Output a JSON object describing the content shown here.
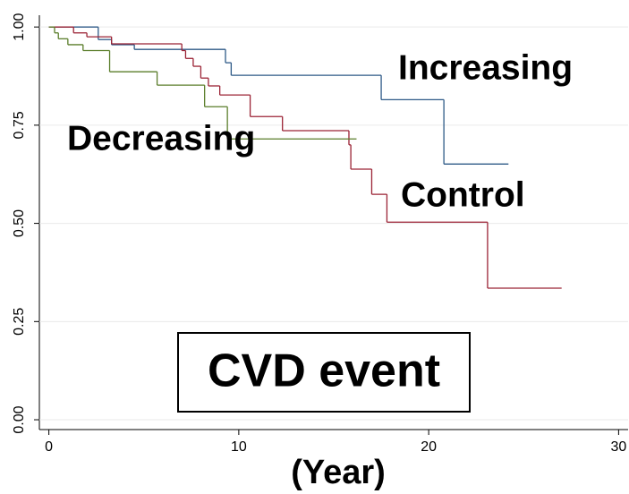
{
  "chart_data": {
    "type": "step",
    "x_label": "(Year)",
    "annotation": "CVD event",
    "xlim": [
      -0.5,
      30.5
    ],
    "xticks": [
      0,
      10,
      20,
      30
    ],
    "ylim": [
      -0.025,
      1.03
    ],
    "yticks": [
      {
        "value": 0,
        "label": "0.00"
      },
      {
        "value": 0.25,
        "label": "0.25"
      },
      {
        "value": 0.5,
        "label": "0.50"
      },
      {
        "value": 0.75,
        "label": "0.75"
      },
      {
        "value": 1,
        "label": "1.00"
      }
    ],
    "grid": true,
    "series": [
      {
        "name": "Increasing",
        "color": "#2e5a87",
        "x": [
          0,
          2.6,
          3.3,
          4.5,
          9.3,
          9.6,
          17.5,
          20.8,
          24.2
        ],
        "values": [
          1,
          0.968,
          0.955,
          0.943,
          0.909,
          0.877,
          0.815,
          0.651,
          0.651
        ]
      },
      {
        "name": "Control",
        "color": "#9b2335",
        "x": [
          0,
          1.3,
          2.0,
          3.3,
          7.0,
          7.2,
          7.6,
          8.0,
          8.4,
          9.0,
          10.6,
          12.3,
          15.8,
          15.9,
          17.0,
          17.8,
          23.1,
          27.0
        ],
        "values": [
          1,
          0.985,
          0.975,
          0.957,
          0.94,
          0.92,
          0.9,
          0.87,
          0.85,
          0.827,
          0.772,
          0.736,
          0.7,
          0.638,
          0.574,
          0.503,
          0.335,
          0.335
        ]
      },
      {
        "name": "Decreasing",
        "color": "#5a7d2a",
        "x": [
          0,
          0.3,
          0.5,
          1.0,
          1.8,
          3.2,
          5.7,
          8.2,
          9.4,
          16.2
        ],
        "values": [
          1,
          0.985,
          0.97,
          0.955,
          0.94,
          0.886,
          0.852,
          0.797,
          0.715,
          0.715
        ]
      }
    ]
  }
}
